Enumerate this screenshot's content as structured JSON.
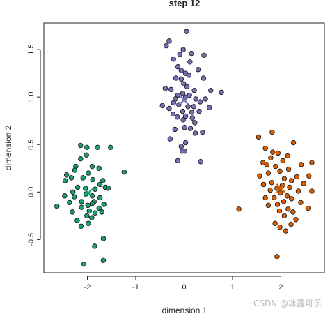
{
  "chart_data": {
    "type": "scatter",
    "title": "step 12",
    "xlabel": "dimension 1",
    "ylabel": "dimension 2",
    "xlim": [
      -2.9,
      2.9
    ],
    "ylim": [
      -0.85,
      1.78
    ],
    "x_ticks": [
      -2,
      -1,
      0,
      1,
      2
    ],
    "y_ticks": [
      -0.5,
      0.0,
      0.5,
      1.0,
      1.5
    ],
    "x_tick_labels": [
      "-2",
      "-1",
      "0",
      "1",
      "2"
    ],
    "y_tick_labels": [
      "-0.5",
      "0.0",
      "0.5",
      "1.0",
      "1.5"
    ],
    "grid": false,
    "series": [
      {
        "color": "#1b9e77",
        "centroid": [
          -1.98,
          -0.01
        ],
        "points": [
          [
            -2.14,
            0.49
          ],
          [
            -2.01,
            0.47
          ],
          [
            -1.79,
            0.47
          ],
          [
            -1.52,
            0.47
          ],
          [
            -2.02,
            0.39
          ],
          [
            -2.14,
            0.35
          ],
          [
            -2.24,
            0.27
          ],
          [
            -2.26,
            0.23
          ],
          [
            -1.9,
            0.27
          ],
          [
            -1.76,
            0.25
          ],
          [
            -1.24,
            0.21
          ],
          [
            -2.43,
            0.18
          ],
          [
            -2.33,
            0.15
          ],
          [
            -2.09,
            0.15
          ],
          [
            -1.98,
            0.2
          ],
          [
            -1.89,
            0.13
          ],
          [
            -1.68,
            0.12
          ],
          [
            -2.46,
            0.12
          ],
          [
            -2.2,
            0.05
          ],
          [
            -1.74,
            0.08
          ],
          [
            -1.63,
            0.05
          ],
          [
            -1.57,
            0.04
          ],
          [
            -2.04,
            0.04
          ],
          [
            -1.84,
            0.03
          ],
          [
            -2.3,
            0.0
          ],
          [
            -2.03,
            -0.02
          ],
          [
            -1.9,
            -0.04
          ],
          [
            -1.74,
            -0.06
          ],
          [
            -2.47,
            -0.04
          ],
          [
            -2.27,
            -0.05
          ],
          [
            -2.63,
            -0.15
          ],
          [
            -2.37,
            -0.11
          ],
          [
            -2.12,
            -0.1
          ],
          [
            -1.86,
            -0.1
          ],
          [
            -1.66,
            -0.13
          ],
          [
            -1.9,
            -0.12
          ],
          [
            -2.12,
            -0.16
          ],
          [
            -1.99,
            -0.14
          ],
          [
            -1.76,
            -0.17
          ],
          [
            -1.96,
            -0.2
          ],
          [
            -1.84,
            -0.22
          ],
          [
            -2.31,
            -0.21
          ],
          [
            -1.7,
            -0.21
          ],
          [
            -2.21,
            -0.3
          ],
          [
            -2.01,
            -0.25
          ],
          [
            -1.91,
            -0.27
          ],
          [
            -1.98,
            -0.33
          ],
          [
            -2.13,
            -0.36
          ],
          [
            -1.67,
            -0.49
          ],
          [
            -1.85,
            -0.57
          ],
          [
            -1.67,
            -0.72
          ],
          [
            -2.07,
            -0.76
          ]
        ]
      },
      {
        "color": "#7570b3",
        "centroid": [
          0.0,
          0.97
        ],
        "points": [
          [
            0.05,
            1.69
          ],
          [
            -0.31,
            1.59
          ],
          [
            -0.37,
            1.54
          ],
          [
            -0.02,
            1.5
          ],
          [
            -0.09,
            1.45
          ],
          [
            0.15,
            1.46
          ],
          [
            0.41,
            1.44
          ],
          [
            -0.22,
            1.4
          ],
          [
            0.12,
            1.37
          ],
          [
            -0.13,
            1.32
          ],
          [
            -0.06,
            1.28
          ],
          [
            0.03,
            1.25
          ],
          [
            0.29,
            1.29
          ],
          [
            -0.17,
            1.2
          ],
          [
            -0.06,
            1.19
          ],
          [
            0.1,
            1.23
          ],
          [
            0.4,
            1.2
          ],
          [
            -0.01,
            1.14
          ],
          [
            0.06,
            1.11
          ],
          [
            -0.39,
            1.09
          ],
          [
            -0.27,
            1.08
          ],
          [
            0.21,
            1.07
          ],
          [
            0.77,
            1.05
          ],
          [
            0.55,
            1.07
          ],
          [
            -0.03,
            1.04
          ],
          [
            -0.13,
            1.02
          ],
          [
            0.11,
            1.02
          ],
          [
            0.03,
            1.0
          ],
          [
            -0.18,
            0.98
          ],
          [
            0.24,
            0.98
          ],
          [
            0.44,
            0.98
          ],
          [
            -0.22,
            0.94
          ],
          [
            0.33,
            0.95
          ],
          [
            -0.11,
            0.92
          ],
          [
            0.08,
            0.9
          ],
          [
            -0.45,
            0.91
          ],
          [
            0.2,
            0.9
          ],
          [
            0.52,
            0.89
          ],
          [
            -0.31,
            0.88
          ],
          [
            -0.03,
            0.85
          ],
          [
            0.16,
            0.84
          ],
          [
            0.31,
            0.85
          ],
          [
            -0.23,
            0.82
          ],
          [
            0.03,
            0.8
          ],
          [
            -0.14,
            0.79
          ],
          [
            0.17,
            0.78
          ],
          [
            -0.02,
            0.76
          ],
          [
            0.22,
            0.73
          ],
          [
            0.01,
            0.68
          ],
          [
            0.13,
            0.67
          ],
          [
            -0.19,
            0.66
          ],
          [
            0.23,
            0.62
          ],
          [
            0.38,
            0.63
          ],
          [
            -0.29,
            0.56
          ],
          [
            0.03,
            0.52
          ],
          [
            -0.06,
            0.48
          ],
          [
            0.01,
            0.43
          ],
          [
            -0.04,
            0.43
          ],
          [
            -0.13,
            0.33
          ],
          [
            0.34,
            0.32
          ]
        ]
      },
      {
        "color": "#d95f02",
        "centroid": [
          2.0,
          0.04
        ],
        "points": [
          [
            1.82,
            0.63
          ],
          [
            1.54,
            0.58
          ],
          [
            2.26,
            0.52
          ],
          [
            1.68,
            0.46
          ],
          [
            1.83,
            0.42
          ],
          [
            1.94,
            0.41
          ],
          [
            2.14,
            0.38
          ],
          [
            1.79,
            0.36
          ],
          [
            2.04,
            0.33
          ],
          [
            1.63,
            0.31
          ],
          [
            1.71,
            0.29
          ],
          [
            2.42,
            0.29
          ],
          [
            2.64,
            0.31
          ],
          [
            1.89,
            0.27
          ],
          [
            2.16,
            0.24
          ],
          [
            1.98,
            0.22
          ],
          [
            1.74,
            0.2
          ],
          [
            1.56,
            0.17
          ],
          [
            2.33,
            0.16
          ],
          [
            2.58,
            0.17
          ],
          [
            2.07,
            0.14
          ],
          [
            2.22,
            0.12
          ],
          [
            1.81,
            0.1
          ],
          [
            1.64,
            0.08
          ],
          [
            2.47,
            0.09
          ],
          [
            2.03,
            0.07
          ],
          [
            1.92,
            0.04
          ],
          [
            2.18,
            0.05
          ],
          [
            1.78,
            0.02
          ],
          [
            2.36,
            0.01
          ],
          [
            2.64,
            0.01
          ],
          [
            1.99,
            -0.01
          ],
          [
            2.13,
            -0.04
          ],
          [
            1.86,
            -0.06
          ],
          [
            1.68,
            -0.06
          ],
          [
            2.22,
            -0.07
          ],
          [
            2.06,
            -0.1
          ],
          [
            1.93,
            -0.13
          ],
          [
            2.41,
            -0.11
          ],
          [
            1.74,
            -0.14
          ],
          [
            2.15,
            -0.18
          ],
          [
            2.56,
            -0.17
          ],
          [
            1.13,
            -0.18
          ],
          [
            1.97,
            -0.2
          ],
          [
            2.25,
            -0.21
          ],
          [
            2.07,
            -0.25
          ],
          [
            2.31,
            -0.29
          ],
          [
            1.88,
            -0.33
          ],
          [
            2.21,
            -0.34
          ],
          [
            1.98,
            -0.37
          ],
          [
            2.1,
            -0.41
          ],
          [
            1.92,
            -0.68
          ]
        ]
      }
    ]
  },
  "watermark": "CSDN @冰露可乐"
}
